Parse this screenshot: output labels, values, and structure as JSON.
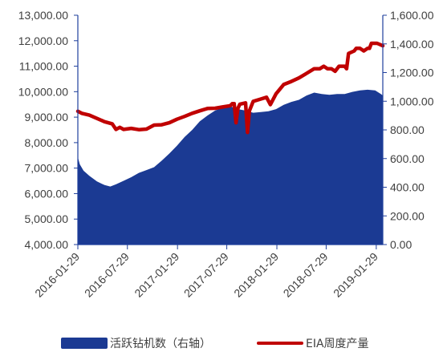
{
  "chart_data": {
    "type": "area",
    "y_left": {
      "min": 4000,
      "max": 13000,
      "step": 1000,
      "tick_labels": [
        "4,000.00",
        "5,000.00",
        "6,000.00",
        "7,000.00",
        "8,000.00",
        "9,000.00",
        "10,000.00",
        "11,000.00",
        "12,000.00",
        "13,000.00"
      ]
    },
    "y_right": {
      "min": 0,
      "max": 1600,
      "step": 200,
      "tick_labels": [
        "0.00",
        "200.00",
        "400.00",
        "600.00",
        "800.00",
        "1,000.00",
        "1,200.00",
        "1,400.00",
        "1,600.00"
      ]
    },
    "x_range": [
      "2016-01-29",
      "2019-02-22"
    ],
    "x_tick_labels": [
      "2016-01-29",
      "2016-07-29",
      "2017-01-29",
      "2017-07-29",
      "2018-01-29",
      "2018-07-29",
      "2019-01-29"
    ],
    "series": [
      {
        "name": "活跃钻机数（右轴）",
        "axis": "right",
        "type": "area",
        "color": "#1b3a93",
        "points": [
          [
            "2016-01-29",
            610
          ],
          [
            "2016-02-05",
            560
          ],
          [
            "2016-02-19",
            515
          ],
          [
            "2016-03-11",
            480
          ],
          [
            "2016-04-08",
            440
          ],
          [
            "2016-05-06",
            415
          ],
          [
            "2016-05-27",
            405
          ],
          [
            "2016-06-17",
            420
          ],
          [
            "2016-07-15",
            445
          ],
          [
            "2016-08-12",
            470
          ],
          [
            "2016-09-09",
            500
          ],
          [
            "2016-10-07",
            520
          ],
          [
            "2016-11-04",
            540
          ],
          [
            "2016-12-02",
            585
          ],
          [
            "2016-12-30",
            635
          ],
          [
            "2017-01-27",
            690
          ],
          [
            "2017-02-24",
            750
          ],
          [
            "2017-03-24",
            800
          ],
          [
            "2017-04-21",
            860
          ],
          [
            "2017-05-19",
            900
          ],
          [
            "2017-06-16",
            935
          ],
          [
            "2017-07-14",
            955
          ],
          [
            "2017-08-11",
            965
          ],
          [
            "2017-09-08",
            945
          ],
          [
            "2017-10-06",
            935
          ],
          [
            "2017-11-03",
            920
          ],
          [
            "2017-12-01",
            925
          ],
          [
            "2017-12-29",
            930
          ],
          [
            "2018-01-26",
            945
          ],
          [
            "2018-02-23",
            975
          ],
          [
            "2018-03-23",
            995
          ],
          [
            "2018-04-20",
            1010
          ],
          [
            "2018-05-18",
            1040
          ],
          [
            "2018-06-15",
            1060
          ],
          [
            "2018-07-13",
            1050
          ],
          [
            "2018-08-10",
            1045
          ],
          [
            "2018-09-07",
            1050
          ],
          [
            "2018-10-05",
            1050
          ],
          [
            "2018-11-02",
            1065
          ],
          [
            "2018-11-30",
            1075
          ],
          [
            "2018-12-28",
            1080
          ],
          [
            "2019-01-25",
            1075
          ],
          [
            "2019-02-15",
            1050
          ],
          [
            "2019-02-22",
            1040
          ]
        ]
      },
      {
        "name": "EIA周度产量",
        "axis": "left",
        "type": "line",
        "color": "#c00000",
        "points": [
          [
            "2016-01-29",
            9230
          ],
          [
            "2016-02-12",
            9150
          ],
          [
            "2016-03-11",
            9080
          ],
          [
            "2016-04-08",
            8950
          ],
          [
            "2016-05-06",
            8820
          ],
          [
            "2016-06-03",
            8740
          ],
          [
            "2016-06-17",
            8520
          ],
          [
            "2016-07-01",
            8600
          ],
          [
            "2016-07-15",
            8520
          ],
          [
            "2016-08-12",
            8560
          ],
          [
            "2016-09-09",
            8510
          ],
          [
            "2016-10-07",
            8530
          ],
          [
            "2016-11-04",
            8690
          ],
          [
            "2016-12-02",
            8700
          ],
          [
            "2016-12-30",
            8780
          ],
          [
            "2017-01-27",
            8920
          ],
          [
            "2017-02-24",
            9030
          ],
          [
            "2017-03-24",
            9150
          ],
          [
            "2017-04-21",
            9250
          ],
          [
            "2017-05-19",
            9340
          ],
          [
            "2017-06-16",
            9350
          ],
          [
            "2017-07-14",
            9400
          ],
          [
            "2017-08-11",
            9450
          ],
          [
            "2017-08-18",
            9530
          ],
          [
            "2017-08-25",
            9530
          ],
          [
            "2017-09-01",
            8780
          ],
          [
            "2017-09-08",
            9350
          ],
          [
            "2017-09-15",
            9510
          ],
          [
            "2017-10-06",
            9560
          ],
          [
            "2017-10-13",
            8400
          ],
          [
            "2017-10-20",
            9250
          ],
          [
            "2017-11-03",
            9620
          ],
          [
            "2017-12-01",
            9710
          ],
          [
            "2017-12-22",
            9780
          ],
          [
            "2018-01-05",
            9490
          ],
          [
            "2018-01-26",
            9920
          ],
          [
            "2018-02-23",
            10280
          ],
          [
            "2018-03-23",
            10400
          ],
          [
            "2018-04-20",
            10540
          ],
          [
            "2018-05-18",
            10720
          ],
          [
            "2018-06-15",
            10900
          ],
          [
            "2018-07-06",
            10900
          ],
          [
            "2018-07-20",
            11000
          ],
          [
            "2018-08-03",
            10900
          ],
          [
            "2018-08-17",
            10900
          ],
          [
            "2018-08-31",
            10800
          ],
          [
            "2018-09-14",
            11000
          ],
          [
            "2018-10-05",
            11000
          ],
          [
            "2018-10-12",
            10900
          ],
          [
            "2018-10-19",
            11500
          ],
          [
            "2018-11-09",
            11600
          ],
          [
            "2018-11-16",
            11700
          ],
          [
            "2018-11-30",
            11700
          ],
          [
            "2018-12-14",
            11600
          ],
          [
            "2018-12-28",
            11700
          ],
          [
            "2019-01-04",
            11700
          ],
          [
            "2019-01-11",
            11900
          ],
          [
            "2019-02-01",
            11900
          ],
          [
            "2019-02-22",
            11800
          ]
        ]
      }
    ],
    "legend": {
      "placement": "bottom"
    }
  }
}
